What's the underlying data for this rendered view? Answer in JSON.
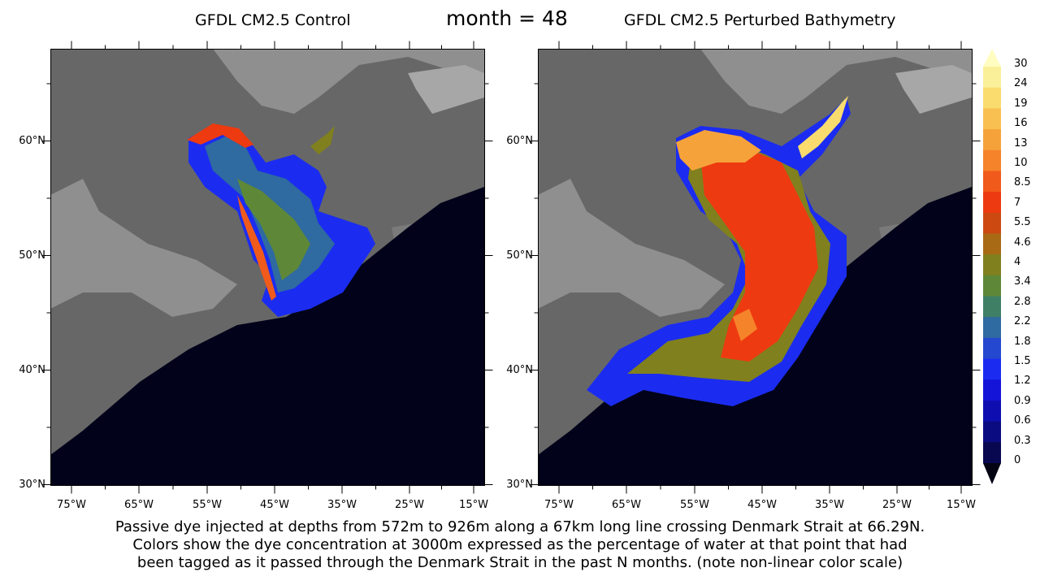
{
  "header": {
    "left_title": "GFDL CM2.5 Control",
    "center_title": "month = 48",
    "right_title": "GFDL CM2.5 Perturbed Bathymetry"
  },
  "axes": {
    "lat_ticks": [
      "60°N",
      "50°N",
      "40°N",
      "30°N"
    ],
    "lon_ticks": [
      "75°W",
      "65°W",
      "55°W",
      "45°W",
      "35°W",
      "25°W",
      "15°W"
    ]
  },
  "colorbar": {
    "labels": [
      "30",
      "24",
      "19",
      "16",
      "13",
      "10",
      "8.5",
      "7",
      "5.5",
      "4.6",
      "4",
      "3.4",
      "2.8",
      "2.2",
      "1.8",
      "1.5",
      "1.2",
      "0.9",
      "0.6",
      "0.3",
      "0"
    ],
    "colors": [
      "#fffdc0",
      "#fbf09a",
      "#f9db6e",
      "#f8c050",
      "#f6a23a",
      "#f5832a",
      "#f05a1a",
      "#ee3a10",
      "#cc4a12",
      "#a86a14",
      "#80801e",
      "#5e8838",
      "#3f7f66",
      "#2f6aa0",
      "#2448d0",
      "#1b2cf0",
      "#1414d8",
      "#0e0eb0",
      "#0b0b80",
      "#080850",
      "#030314"
    ]
  },
  "map_colors": {
    "land": "#676767",
    "shelf": "#8f8f8f",
    "deep": "#02031a"
  },
  "caption": {
    "line1": "Passive dye injected at depths from 572m to 926m along a 67km long line crossing Denmark Strait at 66.29N.",
    "line2": "Colors show the dye concentration at 3000m expressed as the percentage of water at that point that had",
    "line3": "been tagged as it passed through the Denmark Strait in the past N months. (note non-linear color scale)"
  },
  "chart_data": [
    {
      "type": "heatmap",
      "title": "GFDL CM2.5 Control",
      "subtitle": "month = 48",
      "x_range": [
        -80,
        -12
      ],
      "y_range": [
        30,
        68
      ],
      "colorbar_levels": [
        0,
        0.3,
        0.6,
        0.9,
        1.2,
        1.5,
        1.8,
        2.2,
        2.8,
        3.4,
        4,
        4.6,
        5.5,
        7,
        8.5,
        10,
        13,
        16,
        19,
        24,
        30
      ],
      "dye_regions": [
        {
          "description_level": "edge",
          "approx_value": 10
        },
        {
          "description_level": "core",
          "approx_value": 3
        },
        {
          "description_level": "outer",
          "approx_value": 1.5
        }
      ]
    },
    {
      "type": "heatmap",
      "title": "GFDL CM2.5 Perturbed Bathymetry",
      "subtitle": "month = 48",
      "x_range": [
        -80,
        -12
      ],
      "y_range": [
        30,
        68
      ],
      "colorbar_levels": [
        0,
        0.3,
        0.6,
        0.9,
        1.2,
        1.5,
        1.8,
        2.2,
        2.8,
        3.4,
        4,
        4.6,
        5.5,
        7,
        8.5,
        10,
        13,
        16,
        19,
        24,
        30
      ],
      "dye_regions": [
        {
          "description_level": "core",
          "approx_value": 13
        },
        {
          "description_level": "mid",
          "approx_value": 7
        },
        {
          "description_level": "outer",
          "approx_value": 1.5
        }
      ]
    }
  ]
}
